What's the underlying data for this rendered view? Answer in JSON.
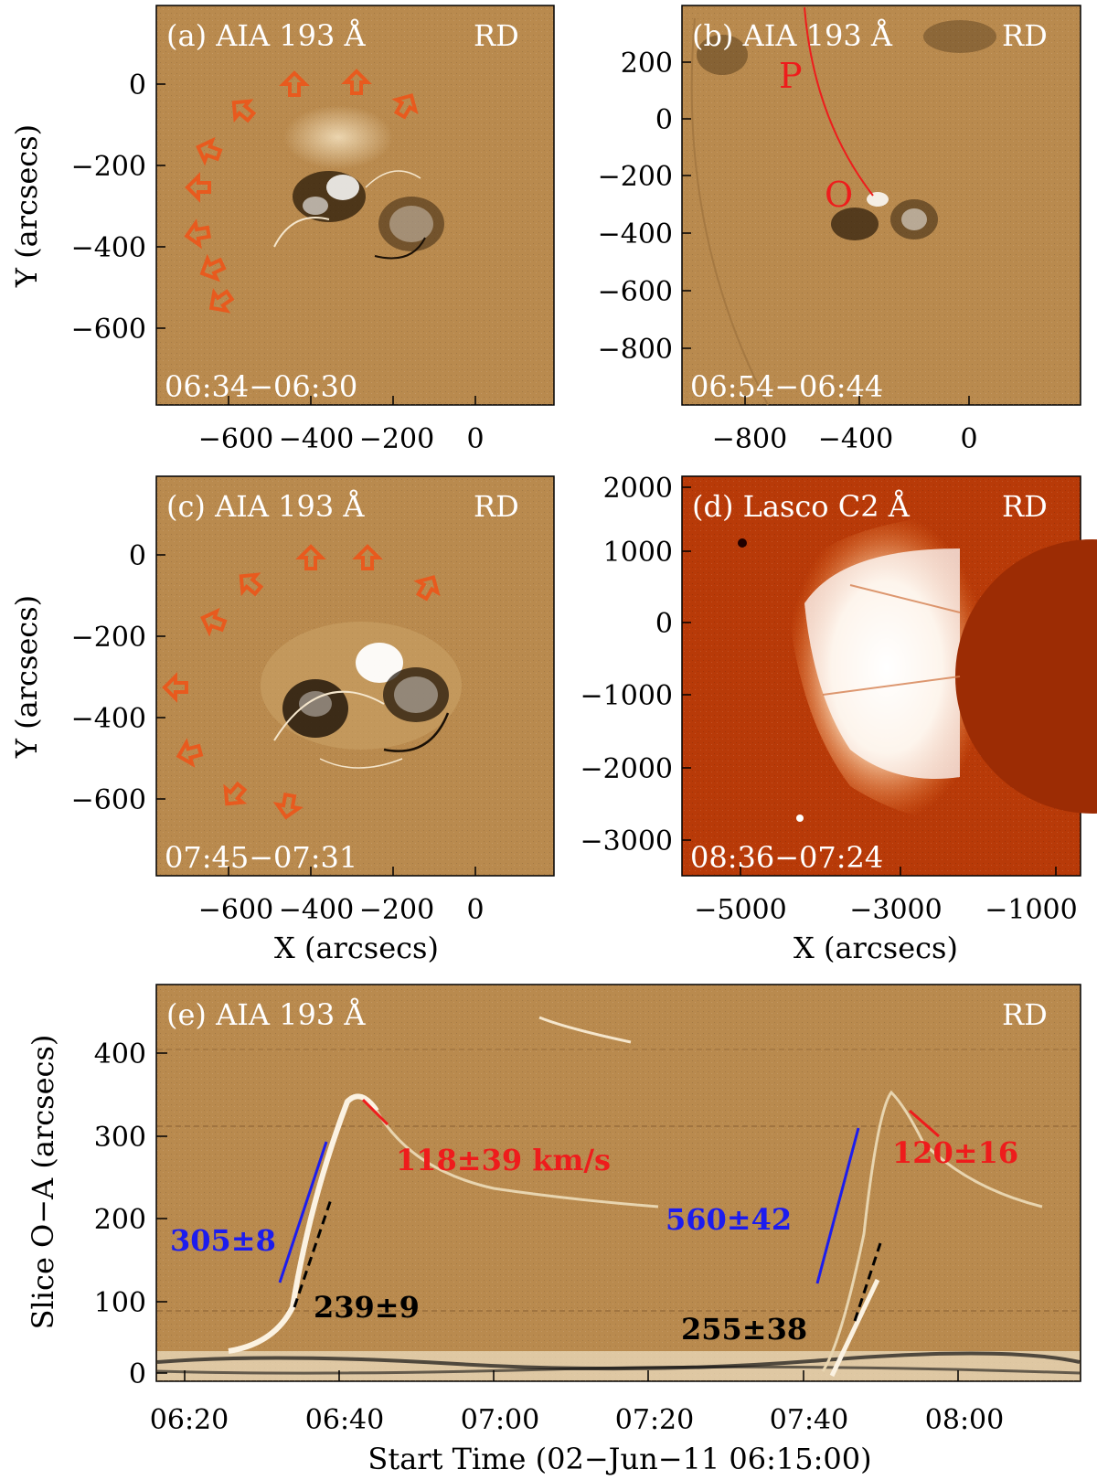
{
  "figure": {
    "panels": [
      {
        "id": "a",
        "label": "(a) AIA 193 Å",
        "tag": "RD",
        "time": "06:34−06:30",
        "y_ticks": [
          "0",
          "−200",
          "−400",
          "−600"
        ],
        "x_ticks": [
          "−600",
          "−400",
          "−200",
          "0"
        ],
        "y_label": "Y (arcsecs)",
        "x_label": ""
      },
      {
        "id": "b",
        "label": "(b) AIA 193 Å",
        "tag": "RD",
        "time": "06:54−06:44",
        "y_ticks": [
          "200",
          "0",
          "−200",
          "−400",
          "−600",
          "−800"
        ],
        "x_ticks": [
          "−800",
          "−400",
          "0"
        ],
        "y_label": "",
        "x_label": "",
        "marker_P": "P",
        "marker_O": "O"
      },
      {
        "id": "c",
        "label": "(c) AIA 193 Å",
        "tag": "RD",
        "time": "07:45−07:31",
        "y_ticks": [
          "0",
          "−200",
          "−400",
          "−600"
        ],
        "x_ticks": [
          "−600",
          "−400",
          "−200",
          "0"
        ],
        "y_label": "Y (arcsecs)",
        "x_label": "X (arcsecs)"
      },
      {
        "id": "d",
        "label": "(d) Lasco C2 Å",
        "tag": "RD",
        "time": "08:36−07:24",
        "y_ticks": [
          "2000",
          "1000",
          "0",
          "−1000",
          "−2000",
          "−3000"
        ],
        "x_ticks": [
          "−5000",
          "−3000",
          "−1000"
        ],
        "y_label": "",
        "x_label": "X (arcsecs)"
      },
      {
        "id": "e",
        "label": "(e) AIA 193 Å",
        "tag": "RD",
        "y_ticks": [
          "400",
          "300",
          "200",
          "100",
          "0"
        ],
        "x_ticks": [
          "06:20",
          "06:40",
          "07:00",
          "07:20",
          "07:40",
          "08:00"
        ],
        "y_label": "Slice O−A (arcsecs)",
        "x_label": "Start Time (02−Jun−11 06:15:00)",
        "annotations": {
          "red_left": "118±39 km/s",
          "blue_left": "305±8",
          "black_left": "239±9",
          "blue_right": "560±42",
          "red_right": "120±16",
          "black_right": "255±38"
        }
      }
    ],
    "colors": {
      "aia_background": "#b98a4e",
      "lasco_background": "#b83a08",
      "arrow": "#e85a1e",
      "red_fit": "#ee1c1c",
      "blue_fit": "#1c1cee",
      "black_fit": "#000000"
    }
  }
}
